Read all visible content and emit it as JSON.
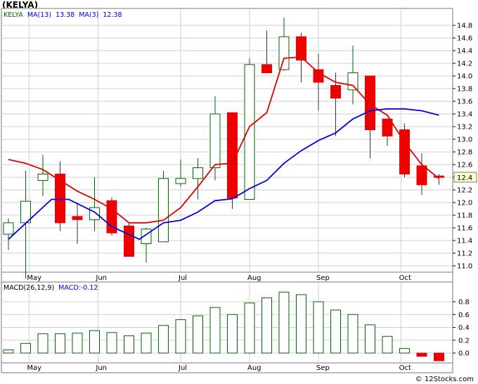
{
  "title": "(KELYA)",
  "credit": "© 12Stocks.com",
  "colors": {
    "ma13": "#0000dd",
    "ma3": "#dd0000",
    "up": "#006600",
    "down": "#ee0000",
    "grid": "#cfcfcf"
  },
  "chart_data": [
    {
      "type": "candlestick",
      "name": "price",
      "legend": [
        {
          "text": "KELYA",
          "color": "#006600"
        },
        {
          "text": "MA(13)",
          "color": "#0000dd"
        },
        {
          "text": "13.38",
          "color": "#0000dd"
        },
        {
          "text": "MA(3)",
          "color": "#0000dd"
        },
        {
          "text": "12.38",
          "color": "#0000dd"
        }
      ],
      "ylim": [
        10.8,
        15.0
      ],
      "yticks": [
        "11.0",
        "11.2",
        "11.4",
        "11.6",
        "11.8",
        "12.0",
        "12.2",
        "12.4",
        "12.6",
        "12.8",
        "13.0",
        "13.2",
        "13.4",
        "13.6",
        "13.8",
        "14.0",
        "14.2",
        "14.4",
        "14.6",
        "14.8"
      ],
      "last_price_label": "12.4",
      "last_price": 12.4,
      "months": [
        {
          "label": "May",
          "at": 1.2
        },
        {
          "label": "Jun",
          "at": 5.2
        },
        {
          "label": "Jul",
          "at": 10.0
        },
        {
          "label": "Aug",
          "at": 14.0
        },
        {
          "label": "Sep",
          "at": 18.0
        },
        {
          "label": "Oct",
          "at": 22.8
        }
      ],
      "candles": [
        {
          "o": 11.5,
          "h": 11.75,
          "l": 11.25,
          "c": 11.68
        },
        {
          "o": 11.68,
          "h": 12.5,
          "l": 10.8,
          "c": 12.02
        },
        {
          "o": 12.35,
          "h": 12.75,
          "l": 12.1,
          "c": 12.45
        },
        {
          "o": 12.45,
          "h": 12.65,
          "l": 11.55,
          "c": 11.68
        },
        {
          "o": 11.78,
          "h": 12.0,
          "l": 11.35,
          "c": 11.73
        },
        {
          "o": 11.73,
          "h": 12.4,
          "l": 11.55,
          "c": 11.92
        },
        {
          "o": 12.03,
          "h": 12.08,
          "l": 11.48,
          "c": 11.52
        },
        {
          "o": 11.63,
          "h": 11.68,
          "l": 11.15,
          "c": 11.15
        },
        {
          "o": 11.35,
          "h": 11.6,
          "l": 11.05,
          "c": 11.58
        },
        {
          "o": 11.38,
          "h": 12.5,
          "l": 11.38,
          "c": 12.38
        },
        {
          "o": 12.3,
          "h": 12.68,
          "l": 12.25,
          "c": 12.38
        },
        {
          "o": 12.38,
          "h": 12.7,
          "l": 12.05,
          "c": 12.55
        },
        {
          "o": 12.55,
          "h": 13.68,
          "l": 12.35,
          "c": 13.4
        },
        {
          "o": 13.42,
          "h": 13.42,
          "l": 11.9,
          "c": 12.07
        },
        {
          "o": 12.05,
          "h": 14.28,
          "l": 12.05,
          "c": 14.18
        },
        {
          "o": 14.18,
          "h": 14.72,
          "l": 14.05,
          "c": 14.05
        },
        {
          "o": 14.1,
          "h": 14.92,
          "l": 14.08,
          "c": 14.62
        },
        {
          "o": 14.62,
          "h": 14.68,
          "l": 13.9,
          "c": 14.25
        },
        {
          "o": 14.1,
          "h": 14.35,
          "l": 13.45,
          "c": 13.9
        },
        {
          "o": 13.85,
          "h": 14.05,
          "l": 13.05,
          "c": 13.65
        },
        {
          "o": 13.78,
          "h": 14.48,
          "l": 13.55,
          "c": 14.05
        },
        {
          "o": 14.0,
          "h": 14.0,
          "l": 12.7,
          "c": 13.15
        },
        {
          "o": 13.32,
          "h": 13.32,
          "l": 12.9,
          "c": 13.05
        },
        {
          "o": 13.15,
          "h": 13.25,
          "l": 12.4,
          "c": 12.45
        },
        {
          "o": 12.58,
          "h": 12.78,
          "l": 12.12,
          "c": 12.28
        },
        {
          "o": 12.42,
          "h": 12.45,
          "l": 12.28,
          "c": 12.4
        }
      ],
      "ma13": [
        {
          "i": 0,
          "v": 11.42
        },
        {
          "i": 2.5,
          "v": 12.05
        },
        {
          "i": 3.5,
          "v": 12.05
        },
        {
          "i": 5,
          "v": 11.85
        },
        {
          "i": 6,
          "v": 11.62
        },
        {
          "i": 7.6,
          "v": 11.42
        },
        {
          "i": 9,
          "v": 11.68
        },
        {
          "i": 10,
          "v": 11.72
        },
        {
          "i": 11,
          "v": 11.85
        },
        {
          "i": 12,
          "v": 12.03
        },
        {
          "i": 13,
          "v": 12.06
        },
        {
          "i": 14,
          "v": 12.22
        },
        {
          "i": 15,
          "v": 12.35
        },
        {
          "i": 16,
          "v": 12.62
        },
        {
          "i": 17,
          "v": 12.82
        },
        {
          "i": 18,
          "v": 12.98
        },
        {
          "i": 19,
          "v": 13.1
        },
        {
          "i": 20,
          "v": 13.32
        },
        {
          "i": 21,
          "v": 13.45
        },
        {
          "i": 22,
          "v": 13.48
        },
        {
          "i": 23,
          "v": 13.48
        },
        {
          "i": 24,
          "v": 13.45
        },
        {
          "i": 25,
          "v": 13.38
        }
      ],
      "ma3": [
        {
          "i": 0,
          "v": 12.68
        },
        {
          "i": 1,
          "v": 12.62
        },
        {
          "i": 2,
          "v": 12.52
        },
        {
          "i": 3,
          "v": 12.35
        },
        {
          "i": 4,
          "v": 12.18
        },
        {
          "i": 5,
          "v": 12.05
        },
        {
          "i": 6,
          "v": 11.9
        },
        {
          "i": 7,
          "v": 11.68
        },
        {
          "i": 8,
          "v": 11.68
        },
        {
          "i": 9,
          "v": 11.72
        },
        {
          "i": 10,
          "v": 11.92
        },
        {
          "i": 11,
          "v": 12.25
        },
        {
          "i": 12,
          "v": 12.6
        },
        {
          "i": 13,
          "v": 12.62
        },
        {
          "i": 14,
          "v": 13.2
        },
        {
          "i": 15,
          "v": 13.42
        },
        {
          "i": 16,
          "v": 14.28
        },
        {
          "i": 17,
          "v": 14.3
        },
        {
          "i": 18,
          "v": 14.05
        },
        {
          "i": 19,
          "v": 13.9
        },
        {
          "i": 20,
          "v": 13.85
        },
        {
          "i": 21,
          "v": 13.55
        },
        {
          "i": 22,
          "v": 13.38
        },
        {
          "i": 23,
          "v": 12.95
        },
        {
          "i": 24,
          "v": 12.6
        },
        {
          "i": 25,
          "v": 12.38
        }
      ]
    },
    {
      "type": "bar",
      "name": "macd",
      "legend": [
        {
          "text": "MACD(26,12,9)",
          "color": "#000000"
        },
        {
          "text": "MACD:-0.12",
          "color": "#0000dd"
        }
      ],
      "ylim": [
        -0.12,
        1.0
      ],
      "yticks": [
        "0.0",
        "0.2",
        "0.4",
        "0.6",
        "0.8"
      ],
      "values": [
        0.05,
        0.15,
        0.3,
        0.3,
        0.31,
        0.35,
        0.32,
        0.27,
        0.31,
        0.43,
        0.52,
        0.58,
        0.71,
        0.6,
        0.78,
        0.86,
        0.95,
        0.91,
        0.8,
        0.67,
        0.6,
        0.44,
        0.26,
        0.07,
        -0.05,
        -0.12
      ],
      "months": [
        "May",
        "Jun",
        "Jul",
        "Aug",
        "Sep",
        "Oct"
      ]
    }
  ]
}
